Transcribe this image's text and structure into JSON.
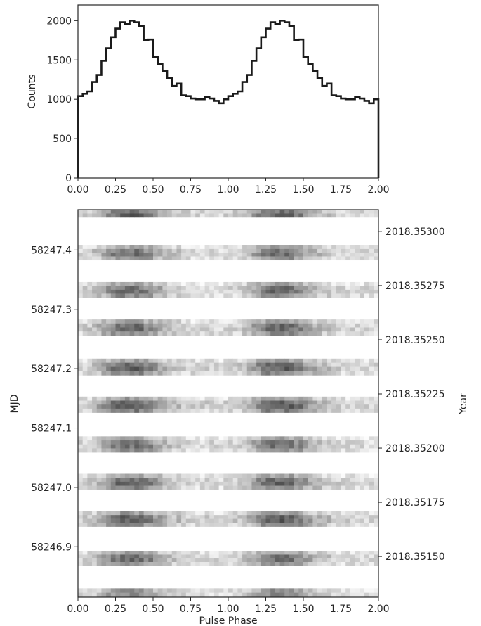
{
  "chart_data": [
    {
      "type": "line",
      "step": true,
      "xlabel": "",
      "ylabel": "Counts",
      "xlim": [
        0.0,
        2.0
      ],
      "ylim": [
        0,
        2200
      ],
      "xticks": [
        "0.00",
        "0.25",
        "0.50",
        "0.75",
        "1.00",
        "1.25",
        "1.50",
        "1.75",
        "2.00"
      ],
      "yticks": [
        "0",
        "500",
        "1000",
        "1500",
        "2000"
      ],
      "bin_width": 0.03125,
      "profile_one_cycle": [
        1040,
        1070,
        1100,
        1220,
        1310,
        1490,
        1650,
        1790,
        1900,
        1980,
        1960,
        2000,
        1980,
        1930,
        1750,
        1760,
        1540,
        1450,
        1360,
        1270,
        1170,
        1200,
        1050,
        1040,
        1010,
        1000,
        1000,
        1030,
        1010,
        980,
        950,
        1000
      ],
      "series": [
        {
          "name": "",
          "color": "#1a1a1a"
        }
      ]
    },
    {
      "type": "heatmap",
      "colormap": "gray_r",
      "xlabel": "Pulse Phase",
      "ylabel": "MJD",
      "y2label": "Year",
      "xlim": [
        0.0,
        2.0
      ],
      "ylim": [
        58246.815,
        58247.468
      ],
      "xticks": [
        "0.00",
        "0.25",
        "0.50",
        "0.75",
        "1.00",
        "1.25",
        "1.50",
        "1.75",
        "2.00"
      ],
      "yticks": [
        "58246.9",
        "58247.0",
        "58247.1",
        "58247.2",
        "58247.3",
        "58247.4"
      ],
      "y2ticks": [
        "2018.35150",
        "2018.35175",
        "2018.35200",
        "2018.35225",
        "2018.35250",
        "2018.35275",
        "2018.35300"
      ],
      "y2tick_values": [
        58246.8836,
        58246.9749,
        58247.0662,
        58247.1575,
        58247.2488,
        58247.3401,
        58247.4314
      ],
      "observation_bands_mjd": [
        [
          58247.455,
          58247.468
        ],
        [
          58247.383,
          58247.408
        ],
        [
          58247.32,
          58247.346
        ],
        [
          58247.256,
          58247.283
        ],
        [
          58247.189,
          58247.217
        ],
        [
          58247.126,
          58247.153
        ],
        [
          58247.059,
          58247.086
        ],
        [
          58246.996,
          58247.023
        ],
        [
          58246.934,
          58246.96
        ],
        [
          58246.868,
          58246.893
        ],
        [
          58246.815,
          58246.83
        ]
      ],
      "band_intensity": [
        0.95,
        0.8,
        0.82,
        0.85,
        0.88,
        0.92,
        0.78,
        0.86,
        0.9,
        0.82,
        0.72
      ],
      "bins_per_cycle": 32
    }
  ]
}
